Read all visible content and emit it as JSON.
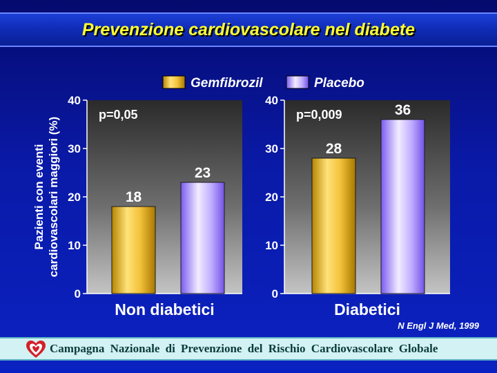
{
  "slide": {
    "title": "Prevenzione cardiovascolare nel diabete",
    "source": "N Engl J Med, 1999",
    "footer": "Campagna Nazionale di Prevenzione del Rischio Cardiovascolare Globale"
  },
  "colors": {
    "gemfibrozil": "#e8b820",
    "placebo": "#b39cff",
    "label_text": "#ffffff",
    "title_text": "#ffff33"
  },
  "chart_data": {
    "type": "bar",
    "ylabel_line1": "Pazienti con eventi",
    "ylabel_line2": "cardiovascolari maggiori (%)",
    "ylim": [
      0,
      40
    ],
    "yticks": [
      0,
      10,
      20,
      30,
      40
    ],
    "legend": {
      "position": "top",
      "entries": [
        "Gemfibrozil",
        "Placebo"
      ]
    },
    "groups": [
      {
        "category": "Non diabetici",
        "p_value": "p=0,05",
        "series": [
          {
            "name": "Gemfibrozil",
            "value": 18
          },
          {
            "name": "Placebo",
            "value": 23
          }
        ]
      },
      {
        "category": "Diabetici",
        "p_value": "p=0,009",
        "series": [
          {
            "name": "Gemfibrozil",
            "value": 28
          },
          {
            "name": "Placebo",
            "value": 36
          }
        ]
      }
    ]
  }
}
